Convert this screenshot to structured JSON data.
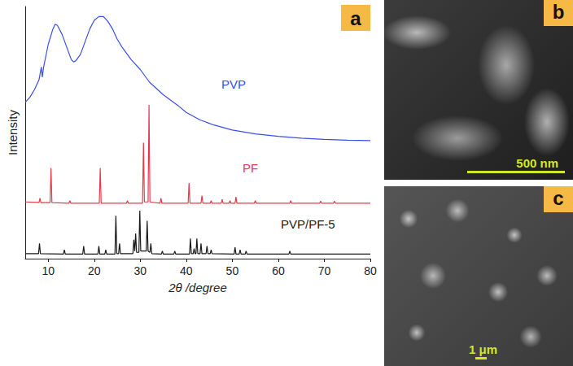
{
  "chart_data": {
    "type": "line",
    "x_label": "2θ /degree",
    "y_label": "Intensity",
    "annotations": [
      "a"
    ],
    "xlim": [
      5,
      80
    ],
    "xticks": [
      10,
      20,
      30,
      40,
      50,
      60,
      70,
      80
    ],
    "ylim": [
      0,
      100
    ],
    "tick_labels": "x",
    "grid": false,
    "series": [
      {
        "name": "PVP",
        "color": "#3a4ee6",
        "x": [
          5,
          6,
          7,
          8,
          8.5,
          8.7,
          9,
          10,
          11,
          11.5,
          12,
          13,
          14,
          15,
          15.5,
          16,
          17,
          18,
          19,
          20,
          21,
          22,
          23,
          24,
          25,
          26,
          28,
          30,
          32,
          35,
          38,
          40,
          43,
          46,
          50,
          55,
          60,
          65,
          70,
          75,
          80
        ],
        "values": [
          62,
          64,
          67,
          71,
          76,
          72,
          76,
          85,
          91,
          93,
          92.5,
          89,
          84,
          79,
          78,
          78.5,
          81,
          86,
          91,
          94.5,
          96,
          96,
          94,
          91,
          87,
          84,
          79,
          75,
          70,
          65,
          61,
          58,
          55,
          53,
          51,
          49.5,
          48.5,
          47.8,
          47.3,
          47,
          46.8
        ]
      },
      {
        "name": "PF",
        "color": "#e8394a",
        "x": [
          5,
          8,
          8.2,
          8.4,
          10.4,
          10.6,
          10.8,
          14.5,
          14.7,
          14.9,
          21.1,
          21.3,
          21.5,
          27,
          27.2,
          27.4,
          30.5,
          30.7,
          30.9,
          31.7,
          31.9,
          32.1,
          34.3,
          34.5,
          34.7,
          40.4,
          40.6,
          40.8,
          43.2,
          43.4,
          43.6,
          45.2,
          45.4,
          45.6,
          47.6,
          47.8,
          48,
          49.3,
          49.5,
          49.7,
          50.6,
          50.8,
          51,
          54.8,
          55,
          55.2,
          62.5,
          62.7,
          62.9,
          69,
          69.2,
          69.4,
          72,
          72.2,
          72.4,
          80
        ],
        "values": [
          22.5,
          22.3,
          24,
          22.2,
          22.2,
          36,
          22.2,
          22,
          23,
          22,
          22,
          36,
          22,
          22,
          23,
          22,
          22,
          46,
          22.5,
          22.5,
          61,
          22.5,
          22,
          24,
          22,
          22,
          30,
          22,
          22,
          25,
          22,
          22,
          23,
          22,
          22,
          23.5,
          22,
          22,
          23,
          22,
          22,
          24.5,
          22,
          22,
          23,
          22,
          22,
          23,
          22,
          22,
          22.8,
          22,
          22,
          22.8,
          22,
          22
        ]
      },
      {
        "name": "PVP/PF-5",
        "color": "#1a1a1a",
        "x": [
          5,
          7.9,
          8.1,
          8.3,
          13.3,
          13.5,
          13.7,
          17.5,
          17.7,
          17.9,
          20.8,
          21,
          21.2,
          22.3,
          22.5,
          22.7,
          24.5,
          24.7,
          24.9,
          25.3,
          25.5,
          25.7,
          28.4,
          28.6,
          28.8,
          29,
          29.2,
          29.7,
          29.9,
          30.1,
          31.3,
          31.5,
          31.7,
          32.1,
          32.3,
          32.5,
          34.6,
          34.8,
          35,
          37.3,
          37.5,
          37.7,
          40.7,
          40.9,
          41.1,
          41.5,
          41.7,
          41.9,
          42.1,
          42.3,
          42.5,
          43,
          43.2,
          43.4,
          44.3,
          44.5,
          44.7,
          45.2,
          45.4,
          45.6,
          50.4,
          50.6,
          50.8,
          51.5,
          51.7,
          51.9,
          52.8,
          53,
          53.2,
          62.3,
          62.5,
          62.7,
          80
        ],
        "values": [
          2,
          2,
          6,
          2,
          1.8,
          3.5,
          1.8,
          1.8,
          5,
          1.8,
          1.8,
          5,
          1.8,
          1.8,
          3.5,
          1.8,
          1.8,
          17,
          2,
          2,
          6,
          2,
          2,
          7.5,
          3,
          10,
          2.5,
          2.5,
          19,
          3,
          3,
          15,
          3,
          2.5,
          6,
          2,
          1.8,
          3,
          1.8,
          1.8,
          3,
          1.8,
          1.8,
          8,
          2,
          2,
          4,
          2,
          2,
          8,
          2,
          2,
          6,
          2,
          2,
          5,
          2,
          2,
          3.5,
          2,
          1.8,
          4.5,
          1.8,
          1.8,
          3.5,
          1.8,
          1.8,
          3,
          1.8,
          1.8,
          3,
          1.8,
          1.8
        ]
      }
    ]
  },
  "images": [
    {
      "label": "b",
      "scale_bar": "500 nm"
    },
    {
      "label": "c",
      "scale_bar": "1 μm"
    }
  ]
}
